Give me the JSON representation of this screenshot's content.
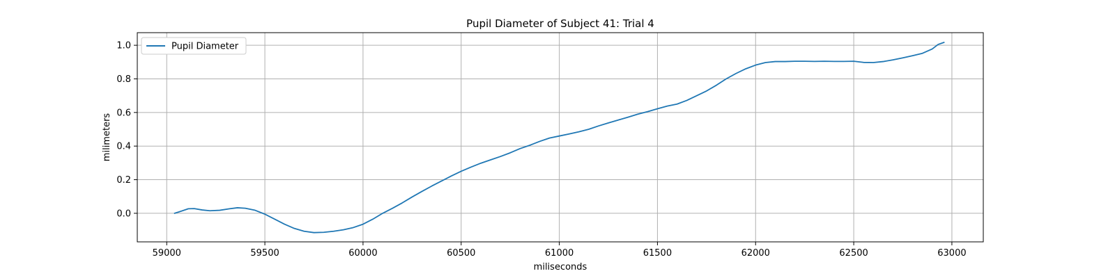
{
  "chart_data": {
    "type": "line",
    "title": "Pupil Diameter of Subject 41: Trial 4",
    "xlabel": "miliseconds",
    "ylabel": "milimeters",
    "xlim": [
      58850,
      63160
    ],
    "ylim": [
      -0.17,
      1.075
    ],
    "xticks": [
      59000,
      59500,
      60000,
      60500,
      61000,
      61500,
      62000,
      62500,
      63000
    ],
    "yticks": [
      0.0,
      0.2,
      0.4,
      0.6,
      0.8,
      1.0
    ],
    "xtick_labels": [
      "59000",
      "59500",
      "60000",
      "60500",
      "61000",
      "61500",
      "62000",
      "62500",
      "63000"
    ],
    "ytick_labels": [
      "0.0",
      "0.2",
      "0.4",
      "0.6",
      "0.8",
      "1.0"
    ],
    "grid": true,
    "legend": {
      "position": "top-left",
      "entries": [
        "Pupil Diameter"
      ]
    },
    "series": [
      {
        "name": "Pupil Diameter",
        "color": "#1f77b4",
        "x": [
          59040,
          59080,
          59110,
          59140,
          59180,
          59220,
          59270,
          59320,
          59360,
          59400,
          59450,
          59500,
          59550,
          59600,
          59650,
          59700,
          59750,
          59800,
          59850,
          59900,
          59950,
          60000,
          60050,
          60100,
          60150,
          60200,
          60250,
          60300,
          60350,
          60400,
          60450,
          60500,
          60550,
          60600,
          60650,
          60700,
          60750,
          60800,
          60850,
          60900,
          60950,
          61000,
          61050,
          61100,
          61150,
          61200,
          61250,
          61300,
          61350,
          61400,
          61450,
          61500,
          61550,
          61600,
          61650,
          61700,
          61750,
          61800,
          61850,
          61900,
          61950,
          62000,
          62050,
          62100,
          62150,
          62200,
          62250,
          62300,
          62350,
          62400,
          62450,
          62500,
          62550,
          62600,
          62650,
          62700,
          62750,
          62800,
          62850,
          62900,
          62930,
          62960
        ],
        "y": [
          0.0,
          0.015,
          0.027,
          0.028,
          0.02,
          0.015,
          0.018,
          0.027,
          0.033,
          0.03,
          0.018,
          -0.005,
          -0.035,
          -0.065,
          -0.09,
          -0.107,
          -0.115,
          -0.113,
          -0.107,
          -0.098,
          -0.085,
          -0.065,
          -0.035,
          0.0,
          0.03,
          0.062,
          0.097,
          0.13,
          0.162,
          0.192,
          0.222,
          0.25,
          0.275,
          0.298,
          0.318,
          0.338,
          0.36,
          0.385,
          0.405,
          0.428,
          0.448,
          0.46,
          0.472,
          0.485,
          0.5,
          0.52,
          0.538,
          0.555,
          0.572,
          0.59,
          0.605,
          0.622,
          0.638,
          0.65,
          0.672,
          0.7,
          0.728,
          0.762,
          0.8,
          0.832,
          0.86,
          0.882,
          0.897,
          0.903,
          0.903,
          0.905,
          0.905,
          0.904,
          0.905,
          0.904,
          0.904,
          0.905,
          0.898,
          0.897,
          0.903,
          0.913,
          0.925,
          0.938,
          0.952,
          0.978,
          1.005,
          1.017
        ]
      }
    ]
  }
}
